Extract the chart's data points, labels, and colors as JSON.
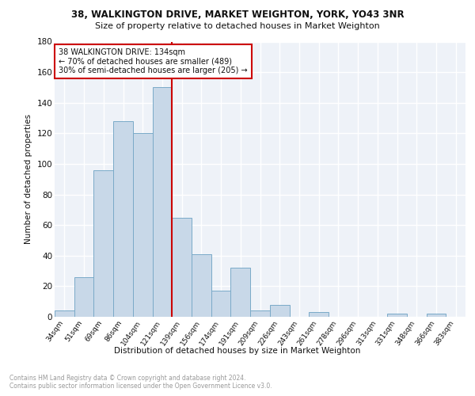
{
  "title1": "38, WALKINGTON DRIVE, MARKET WEIGHTON, YORK, YO43 3NR",
  "title2": "Size of property relative to detached houses in Market Weighton",
  "xlabel": "Distribution of detached houses by size in Market Weighton",
  "ylabel": "Number of detached properties",
  "categories": [
    "34sqm",
    "51sqm",
    "69sqm",
    "86sqm",
    "104sqm",
    "121sqm",
    "139sqm",
    "156sqm",
    "174sqm",
    "191sqm",
    "209sqm",
    "226sqm",
    "243sqm",
    "261sqm",
    "278sqm",
    "296sqm",
    "313sqm",
    "331sqm",
    "348sqm",
    "366sqm",
    "383sqm"
  ],
  "values": [
    4,
    26,
    96,
    128,
    120,
    150,
    65,
    41,
    17,
    32,
    4,
    8,
    0,
    3,
    0,
    0,
    0,
    2,
    0,
    2,
    0
  ],
  "bar_color": "#c8d8e8",
  "bar_edge_color": "#7aaac8",
  "bg_color": "#eef2f8",
  "grid_color": "#ffffff",
  "vline_x_idx": 6,
  "vline_color": "#cc0000",
  "annotation_text": "38 WALKINGTON DRIVE: 134sqm\n← 70% of detached houses are smaller (489)\n30% of semi-detached houses are larger (205) →",
  "annotation_box_color": "#ffffff",
  "annotation_box_edge": "#cc0000",
  "footnote": "Contains HM Land Registry data © Crown copyright and database right 2024.\nContains public sector information licensed under the Open Government Licence v3.0.",
  "ylim": [
    0,
    180
  ],
  "yticks": [
    0,
    20,
    40,
    60,
    80,
    100,
    120,
    140,
    160,
    180
  ]
}
